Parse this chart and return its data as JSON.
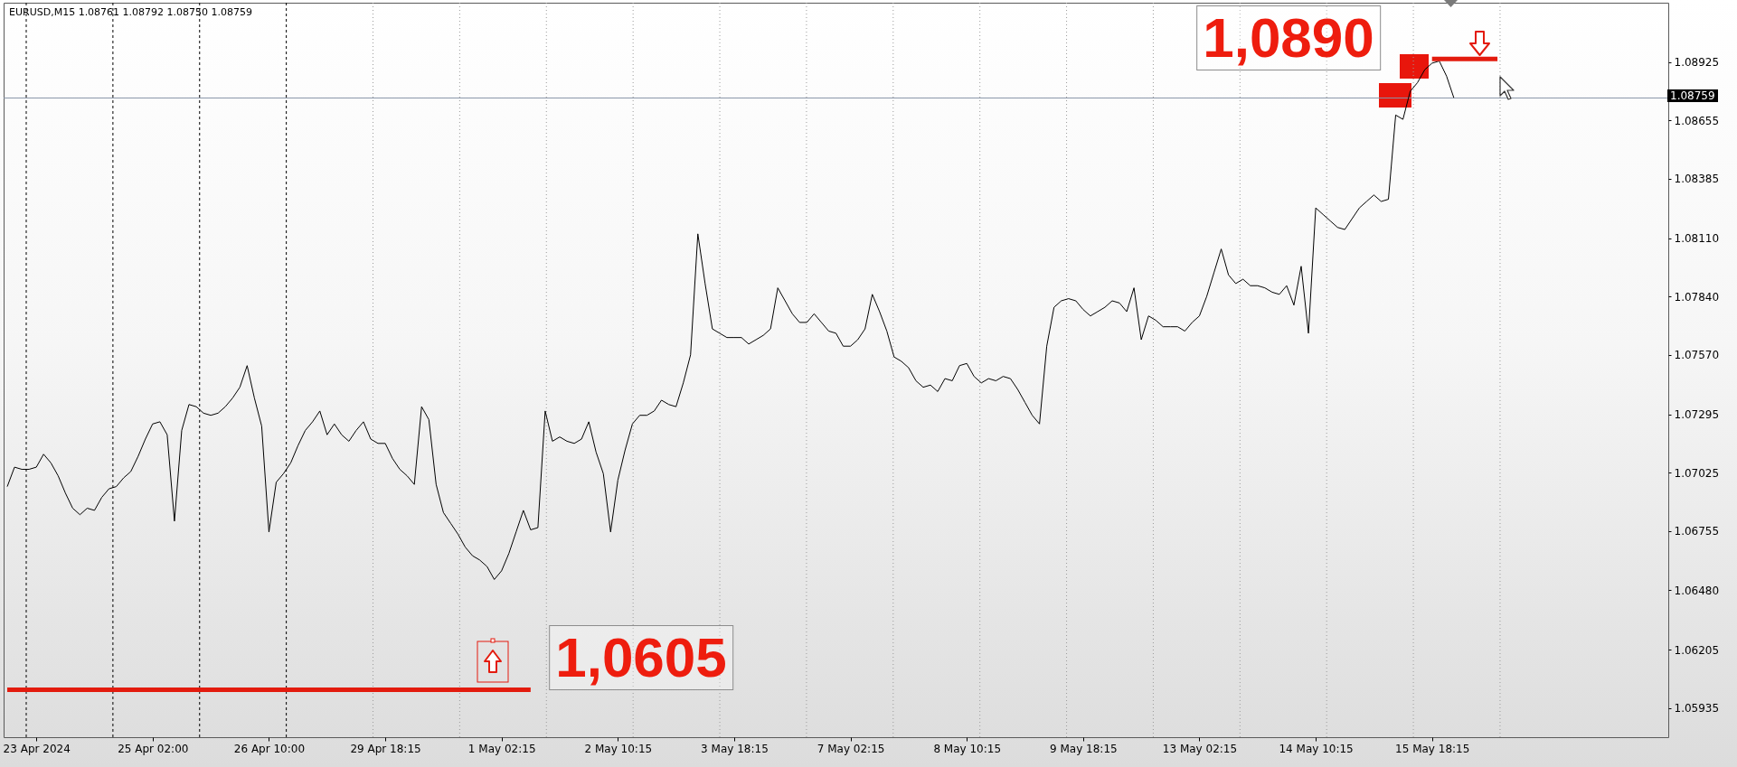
{
  "chart_data": {
    "type": "line",
    "title": "EURUSD,M15 1.08761 1.08792 1.08750 1.08759",
    "categories": [
      null,
      null,
      null,
      null,
      "23 Apr 2024",
      null,
      null,
      null,
      null,
      null,
      null,
      null,
      null,
      null,
      null,
      null,
      null,
      null,
      null,
      null,
      "25 Apr 02:00",
      null,
      null,
      null,
      null,
      null,
      null,
      null,
      null,
      null,
      null,
      null,
      null,
      null,
      null,
      null,
      "26 Apr 10:00",
      null,
      null,
      null,
      null,
      null,
      null,
      null,
      null,
      null,
      null,
      null,
      null,
      null,
      null,
      null,
      "29 Apr 18:15",
      null,
      null,
      null,
      null,
      null,
      null,
      null,
      null,
      null,
      null,
      null,
      null,
      null,
      null,
      null,
      "1 May 02:15",
      null,
      null,
      null,
      null,
      null,
      null,
      null,
      null,
      null,
      null,
      null,
      null,
      null,
      null,
      null,
      "2 May 10:15",
      null,
      null,
      null,
      null,
      null,
      null,
      null,
      null,
      null,
      null,
      null,
      null,
      null,
      null,
      null,
      "3 May 18:15",
      null,
      null,
      null,
      null,
      null,
      null,
      null,
      null,
      null,
      null,
      null,
      null,
      null,
      null,
      null,
      "7 May 02:15",
      null,
      null,
      null,
      null,
      null,
      null,
      null,
      null,
      null,
      null,
      null,
      null,
      null,
      null,
      null,
      "8 May 10:15",
      null,
      null,
      null,
      null,
      null,
      null,
      null,
      null,
      null,
      null,
      null,
      null,
      null,
      null,
      null,
      "9 May 18:15",
      null,
      null,
      null,
      null,
      null,
      null,
      null,
      null,
      null,
      null,
      null,
      null,
      null,
      null,
      null,
      "13 May 02:15",
      null,
      null,
      null,
      null,
      null,
      null,
      null,
      null,
      null,
      null,
      null,
      null,
      null,
      null,
      null,
      "14 May 10:15",
      null,
      null,
      null,
      null,
      null,
      null,
      null,
      null,
      null,
      null,
      null,
      null,
      null,
      null,
      null,
      "15 May 18:15",
      null,
      null,
      null,
      null,
      null,
      null,
      null,
      null,
      null,
      null,
      null,
      null,
      null,
      null,
      null,
      null,
      null,
      null,
      null,
      null,
      null,
      null,
      null,
      null,
      null,
      null,
      null,
      null,
      null,
      null,
      null,
      null
    ],
    "ylim": [
      1.058,
      1.092
    ],
    "yticks": [
      1.05935,
      1.06205,
      {
        "value": 1.0648,
        "label": "1.06480"
      },
      1.06755,
      1.07025,
      1.07295,
      {
        "value": 1.0757,
        "label": "1.07570"
      },
      {
        "value": 1.0784,
        "label": "1.07840"
      },
      {
        "value": 1.0811,
        "label": "1.08110"
      },
      1.08385,
      1.08655,
      1.08925
    ],
    "series": [
      {
        "color": "#000000",
        "values": [
          1.0696,
          1.0705,
          1.0704,
          1.0704,
          1.0705,
          1.0711,
          1.0707,
          1.0701,
          1.0693,
          1.0686,
          1.0683,
          1.0686,
          1.0685,
          1.0691,
          1.0695,
          1.0696,
          1.07,
          1.0703,
          1.071,
          1.0718,
          1.0725,
          1.0726,
          1.072,
          1.068,
          1.0722,
          1.0734,
          1.0733,
          1.073,
          1.0729,
          1.073,
          1.0733,
          1.0737,
          1.0742,
          1.0752,
          1.0737,
          1.0724,
          1.0675,
          1.0698,
          1.0702,
          1.0707,
          1.0715,
          1.0722,
          1.0726,
          1.0731,
          1.072,
          1.0725,
          1.072,
          1.0717,
          1.0722,
          1.0726,
          1.0718,
          1.0716,
          1.0716,
          1.0709,
          1.0704,
          1.0701,
          1.0697,
          1.0733,
          1.0727,
          1.0697,
          1.0684,
          1.0679,
          1.0674,
          1.0668,
          1.0664,
          1.0662,
          1.0659,
          1.0653,
          1.0657,
          1.0665,
          1.0675,
          1.0685,
          1.0676,
          1.0677,
          1.0731,
          1.0717,
          1.0719,
          1.0717,
          1.0716,
          1.0718,
          1.0726,
          1.0712,
          1.0702,
          1.0675,
          1.0699,
          1.0713,
          1.0725,
          1.0729,
          1.0729,
          1.0731,
          1.0736,
          1.0734,
          1.0733,
          1.0744,
          1.0757,
          1.0813,
          1.079,
          1.0769,
          1.0767,
          1.0765,
          1.0765,
          1.0765,
          1.0762,
          1.0764,
          1.0766,
          1.0769,
          1.0788,
          1.0782,
          1.0776,
          1.0772,
          1.0772,
          1.0776,
          1.0772,
          1.0768,
          1.0767,
          1.0761,
          1.0761,
          1.0764,
          1.0769,
          1.0785,
          1.0777,
          1.0768,
          1.0756,
          1.0754,
          1.0751,
          1.0745,
          1.0742,
          1.0743,
          1.074,
          1.0746,
          1.0745,
          1.0752,
          1.0753,
          1.0747,
          1.0744,
          1.0746,
          1.0745,
          1.0747,
          1.0746,
          1.0741,
          1.0735,
          1.0729,
          1.0725,
          1.0761,
          1.0779,
          1.0782,
          1.0783,
          1.0782,
          1.0778,
          1.0775,
          1.0777,
          1.0779,
          1.0782,
          1.0781,
          1.0777,
          1.0788,
          1.0764,
          1.0775,
          1.0773,
          1.077,
          1.077,
          1.077,
          1.0768,
          1.0772,
          1.0775,
          1.0784,
          1.0795,
          1.0806,
          1.0794,
          1.079,
          1.0792,
          1.0789,
          1.0789,
          1.0788,
          1.0786,
          1.0785,
          1.0789,
          1.078,
          1.0798,
          1.0767,
          1.0825,
          1.0822,
          1.0819,
          1.0816,
          1.0815,
          1.082,
          1.0825,
          1.0828,
          1.0831,
          1.0828,
          1.0829,
          1.0868,
          1.0866,
          1.0879,
          1.0883,
          1.0889,
          1.0892,
          1.0893,
          1.0886,
          1.0876,
          null,
          null,
          null,
          null,
          null,
          null,
          null,
          null,
          null,
          null,
          null,
          null,
          null,
          null,
          null,
          null,
          null,
          null,
          null,
          null,
          null,
          null,
          null,
          null,
          null,
          null,
          null,
          null,
          null
        ]
      },
      {
        "type": "line",
        "color": "#e31b0e",
        "values": [
          1.0602,
          1.0602,
          1.0602,
          1.0602,
          1.0602,
          1.0602,
          1.0602,
          1.0602,
          1.0602,
          1.0602,
          1.0602,
          1.0602,
          1.0602,
          1.0602,
          1.0602,
          1.0602,
          1.0602,
          1.0602,
          1.0602,
          1.0602,
          1.0602,
          1.0602,
          1.0602,
          1.0602,
          1.0602,
          1.0602,
          1.0602,
          1.0602,
          1.0602,
          1.0602,
          1.0602,
          1.0602,
          1.0602,
          1.0602,
          1.0602,
          1.0602,
          1.0602,
          1.0602,
          1.0602,
          1.0602,
          1.0602,
          1.0602,
          1.0602,
          1.0602,
          1.0602,
          1.0602,
          1.0602,
          1.0602,
          1.0602,
          1.0602,
          1.0602,
          1.0602,
          1.0602,
          1.0602,
          1.0602,
          1.0602,
          1.0602,
          1.0602,
          1.0602,
          1.0602,
          1.0602,
          1.0602,
          1.0602,
          1.0602,
          1.0602,
          1.0602,
          1.0602,
          1.0602,
          1.0602,
          1.0602,
          1.0602,
          1.0602,
          1.0602,
          null,
          null,
          null,
          null,
          null,
          null,
          null,
          null,
          null,
          null,
          null,
          null,
          null,
          null,
          null,
          null,
          null,
          null,
          null,
          null,
          null,
          null,
          null,
          null,
          null,
          null,
          null,
          null,
          null,
          null,
          null,
          null,
          null,
          null,
          null,
          null,
          null,
          null,
          null,
          null,
          null,
          null,
          null,
          null,
          null,
          null,
          null,
          null,
          null,
          null,
          null,
          null,
          null,
          null,
          null,
          null,
          null,
          null,
          null,
          null,
          null,
          null,
          null,
          null,
          null,
          null,
          null,
          null,
          null,
          null,
          null,
          null,
          null,
          null,
          null,
          null,
          null,
          null,
          null,
          null,
          null,
          null,
          null,
          null,
          null,
          null,
          null,
          null,
          null,
          null,
          null,
          null,
          null,
          null,
          null,
          null,
          null,
          null,
          null,
          null,
          null,
          null,
          null,
          null,
          null,
          null,
          null,
          null,
          null,
          null,
          null,
          null,
          null,
          null,
          null,
          null,
          null,
          null,
          null,
          null,
          null,
          null,
          null,
          null,
          null,
          null,
          null,
          null,
          null,
          null,
          null,
          null,
          null,
          null,
          null,
          null,
          null,
          null,
          null,
          null,
          null,
          null,
          null,
          null,
          null,
          null,
          null,
          null,
          null,
          null,
          null,
          null,
          null,
          null,
          null,
          null
        ]
      },
      {
        "type": "line",
        "color": "#e31b0e",
        "values": [
          null,
          null,
          null,
          null,
          null,
          null,
          null,
          null,
          null,
          null,
          null,
          null,
          null,
          null,
          null,
          null,
          null,
          null,
          null,
          null,
          null,
          null,
          null,
          null,
          null,
          null,
          null,
          null,
          null,
          null,
          null,
          null,
          null,
          null,
          null,
          null,
          null,
          null,
          null,
          null,
          null,
          null,
          null,
          null,
          null,
          null,
          null,
          null,
          null,
          null,
          null,
          null,
          null,
          null,
          null,
          null,
          null,
          null,
          null,
          null,
          null,
          null,
          null,
          null,
          null,
          null,
          null,
          null,
          null,
          null,
          null,
          null,
          null,
          null,
          null,
          null,
          null,
          null,
          null,
          null,
          null,
          null,
          null,
          null,
          null,
          null,
          null,
          null,
          null,
          null,
          null,
          null,
          null,
          null,
          null,
          null,
          null,
          null,
          null,
          null,
          null,
          null,
          null,
          null,
          null,
          null,
          null,
          null,
          null,
          null,
          null,
          null,
          null,
          null,
          null,
          null,
          null,
          null,
          null,
          null,
          null,
          null,
          null,
          null,
          null,
          null,
          null,
          null,
          null,
          null,
          null,
          null,
          null,
          null,
          null,
          null,
          null,
          null,
          null,
          null,
          null,
          null,
          null,
          null,
          null,
          null,
          null,
          null,
          null,
          null,
          null,
          null,
          null,
          null,
          null,
          null,
          null,
          null,
          null,
          null,
          null,
          null,
          null,
          null,
          null,
          null,
          null,
          null,
          null,
          null,
          null,
          null,
          null,
          null,
          null,
          null,
          null,
          null,
          null,
          null,
          null,
          null,
          null,
          null,
          null,
          null,
          null,
          null,
          null,
          null,
          null,
          null,
          null,
          null,
          null,
          null,
          1.0894,
          1.0894,
          1.0894,
          1.0894,
          1.0894,
          1.0894,
          1.0894,
          1.0894,
          1.0894,
          1.0894,
          null,
          null,
          null,
          null,
          null,
          null,
          null,
          null,
          null,
          null,
          null,
          null,
          null,
          null,
          null,
          null,
          null,
          null,
          null,
          null,
          null,
          null,
          null
        ]
      }
    ],
    "ref_lines": [
      {
        "axis": "y",
        "value": 1.08759,
        "label": "1.08759",
        "color": "#8995a8"
      }
    ],
    "annotations": [
      "1,0890",
      "1,0605"
    ]
  }
}
